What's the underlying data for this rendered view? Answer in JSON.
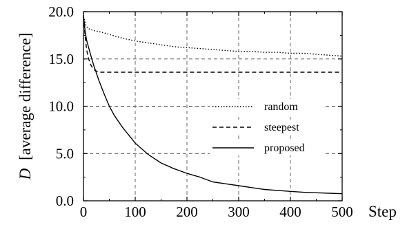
{
  "chart_data": {
    "type": "line",
    "title": "",
    "xlabel": "Step",
    "ylabel": "[average difference]",
    "ylabel_var": "D",
    "xlim": [
      0,
      500
    ],
    "ylim": [
      0,
      20
    ],
    "x_ticks": [
      "0",
      "100",
      "200",
      "300",
      "400",
      "500"
    ],
    "x_tick_values": [
      0,
      100,
      200,
      300,
      400,
      500
    ],
    "y_ticks": [
      "0.0",
      "5.0",
      "10.0",
      "15.0",
      "20.0"
    ],
    "y_tick_values": [
      0,
      5,
      10,
      15,
      20
    ],
    "grid": true,
    "legend_position": "right",
    "series": [
      {
        "name": "random",
        "style": "dotted",
        "x": [
          0,
          5,
          10,
          20,
          30,
          50,
          75,
          100,
          125,
          150,
          175,
          200,
          225,
          250,
          275,
          300,
          325,
          350,
          375,
          400,
          425,
          450,
          475,
          500
        ],
        "y": [
          19.5,
          18.5,
          18.2,
          18.0,
          17.9,
          17.6,
          17.2,
          16.9,
          16.7,
          16.5,
          16.3,
          16.2,
          16.1,
          16.0,
          15.9,
          15.8,
          15.8,
          15.7,
          15.7,
          15.6,
          15.6,
          15.5,
          15.4,
          15.3
        ]
      },
      {
        "name": "steepest",
        "style": "dashed",
        "x": [
          0,
          3,
          6,
          10,
          14,
          18,
          22,
          26,
          30,
          40,
          60,
          100,
          200,
          300,
          400,
          500
        ],
        "y": [
          19.5,
          17.5,
          16.0,
          15.0,
          14.4,
          14.0,
          13.8,
          13.7,
          13.6,
          13.6,
          13.6,
          13.6,
          13.6,
          13.6,
          13.6,
          13.6
        ]
      },
      {
        "name": "proposed",
        "style": "solid",
        "x": [
          0,
          3,
          6,
          10,
          15,
          20,
          30,
          40,
          50,
          60,
          75,
          100,
          125,
          150,
          175,
          200,
          225,
          250,
          275,
          300,
          325,
          350,
          375,
          400,
          425,
          450,
          475,
          500
        ],
        "y": [
          19.6,
          18.0,
          17.0,
          16.2,
          15.2,
          14.3,
          12.7,
          11.3,
          10.0,
          9.0,
          7.8,
          6.1,
          4.9,
          4.0,
          3.4,
          2.9,
          2.5,
          2.0,
          1.8,
          1.6,
          1.4,
          1.2,
          1.1,
          1.0,
          0.9,
          0.85,
          0.8,
          0.75
        ]
      }
    ]
  }
}
